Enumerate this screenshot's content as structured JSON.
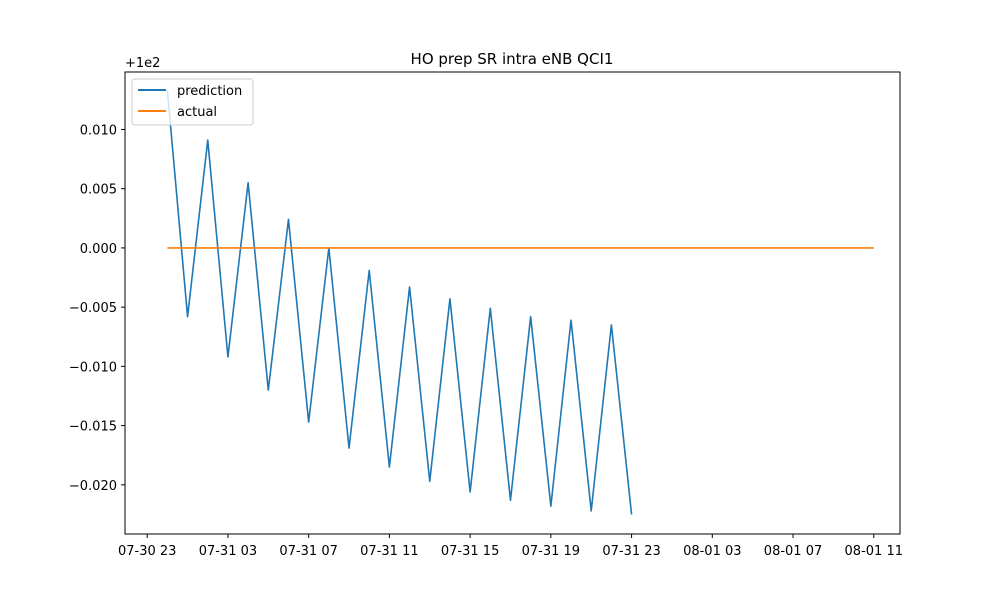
{
  "chart_data": {
    "type": "line",
    "title": "HO prep SR intra eNB QCI1",
    "xlabel": "",
    "ylabel": "",
    "offset_label": "+1e2",
    "y_offset": 100,
    "legend_position": "top-left",
    "grid": false,
    "x_ticks": [
      {
        "hour": 23,
        "label": "07-30 23"
      },
      {
        "hour": 27,
        "label": "07-31 03"
      },
      {
        "hour": 31,
        "label": "07-31 07"
      },
      {
        "hour": 35,
        "label": "07-31 11"
      },
      {
        "hour": 39,
        "label": "07-31 15"
      },
      {
        "hour": 43,
        "label": "07-31 19"
      },
      {
        "hour": 47,
        "label": "07-31 23"
      },
      {
        "hour": 51,
        "label": "08-01 03"
      },
      {
        "hour": 55,
        "label": "08-01 07"
      },
      {
        "hour": 59,
        "label": "08-01 11"
      }
    ],
    "y_ticks": [
      {
        "value": 0.01,
        "label": "0.010"
      },
      {
        "value": 0.005,
        "label": "0.005"
      },
      {
        "value": 0.0,
        "label": "0.000"
      },
      {
        "value": -0.005,
        "label": "−0.005"
      },
      {
        "value": -0.01,
        "label": "−0.010"
      },
      {
        "value": -0.015,
        "label": "−0.015"
      },
      {
        "value": -0.02,
        "label": "−0.020"
      }
    ],
    "xlim": [
      21.9,
      60.3
    ],
    "ylim": [
      -0.02415,
      0.01485
    ],
    "series": [
      {
        "name": "prediction",
        "color": "#1f77b4",
        "x": [
          24,
          25,
          26,
          27,
          28,
          29,
          30,
          31,
          32,
          33,
          34,
          35,
          36,
          37,
          38,
          39,
          40,
          41,
          42,
          43,
          44,
          45,
          46,
          47
        ],
        "y": [
          0.0133,
          -0.0058,
          0.0091,
          -0.0092,
          0.0055,
          -0.012,
          0.0024,
          -0.0147,
          0.0,
          -0.0169,
          -0.0019,
          -0.0185,
          -0.0033,
          -0.0197,
          -0.0043,
          -0.0206,
          -0.0051,
          -0.0213,
          -0.0058,
          -0.0218,
          -0.0061,
          -0.0222,
          -0.0065,
          -0.0225
        ]
      },
      {
        "name": "actual",
        "color": "#ff7f0e",
        "x": [
          24,
          59
        ],
        "y": [
          0.0,
          0.0
        ]
      }
    ]
  }
}
